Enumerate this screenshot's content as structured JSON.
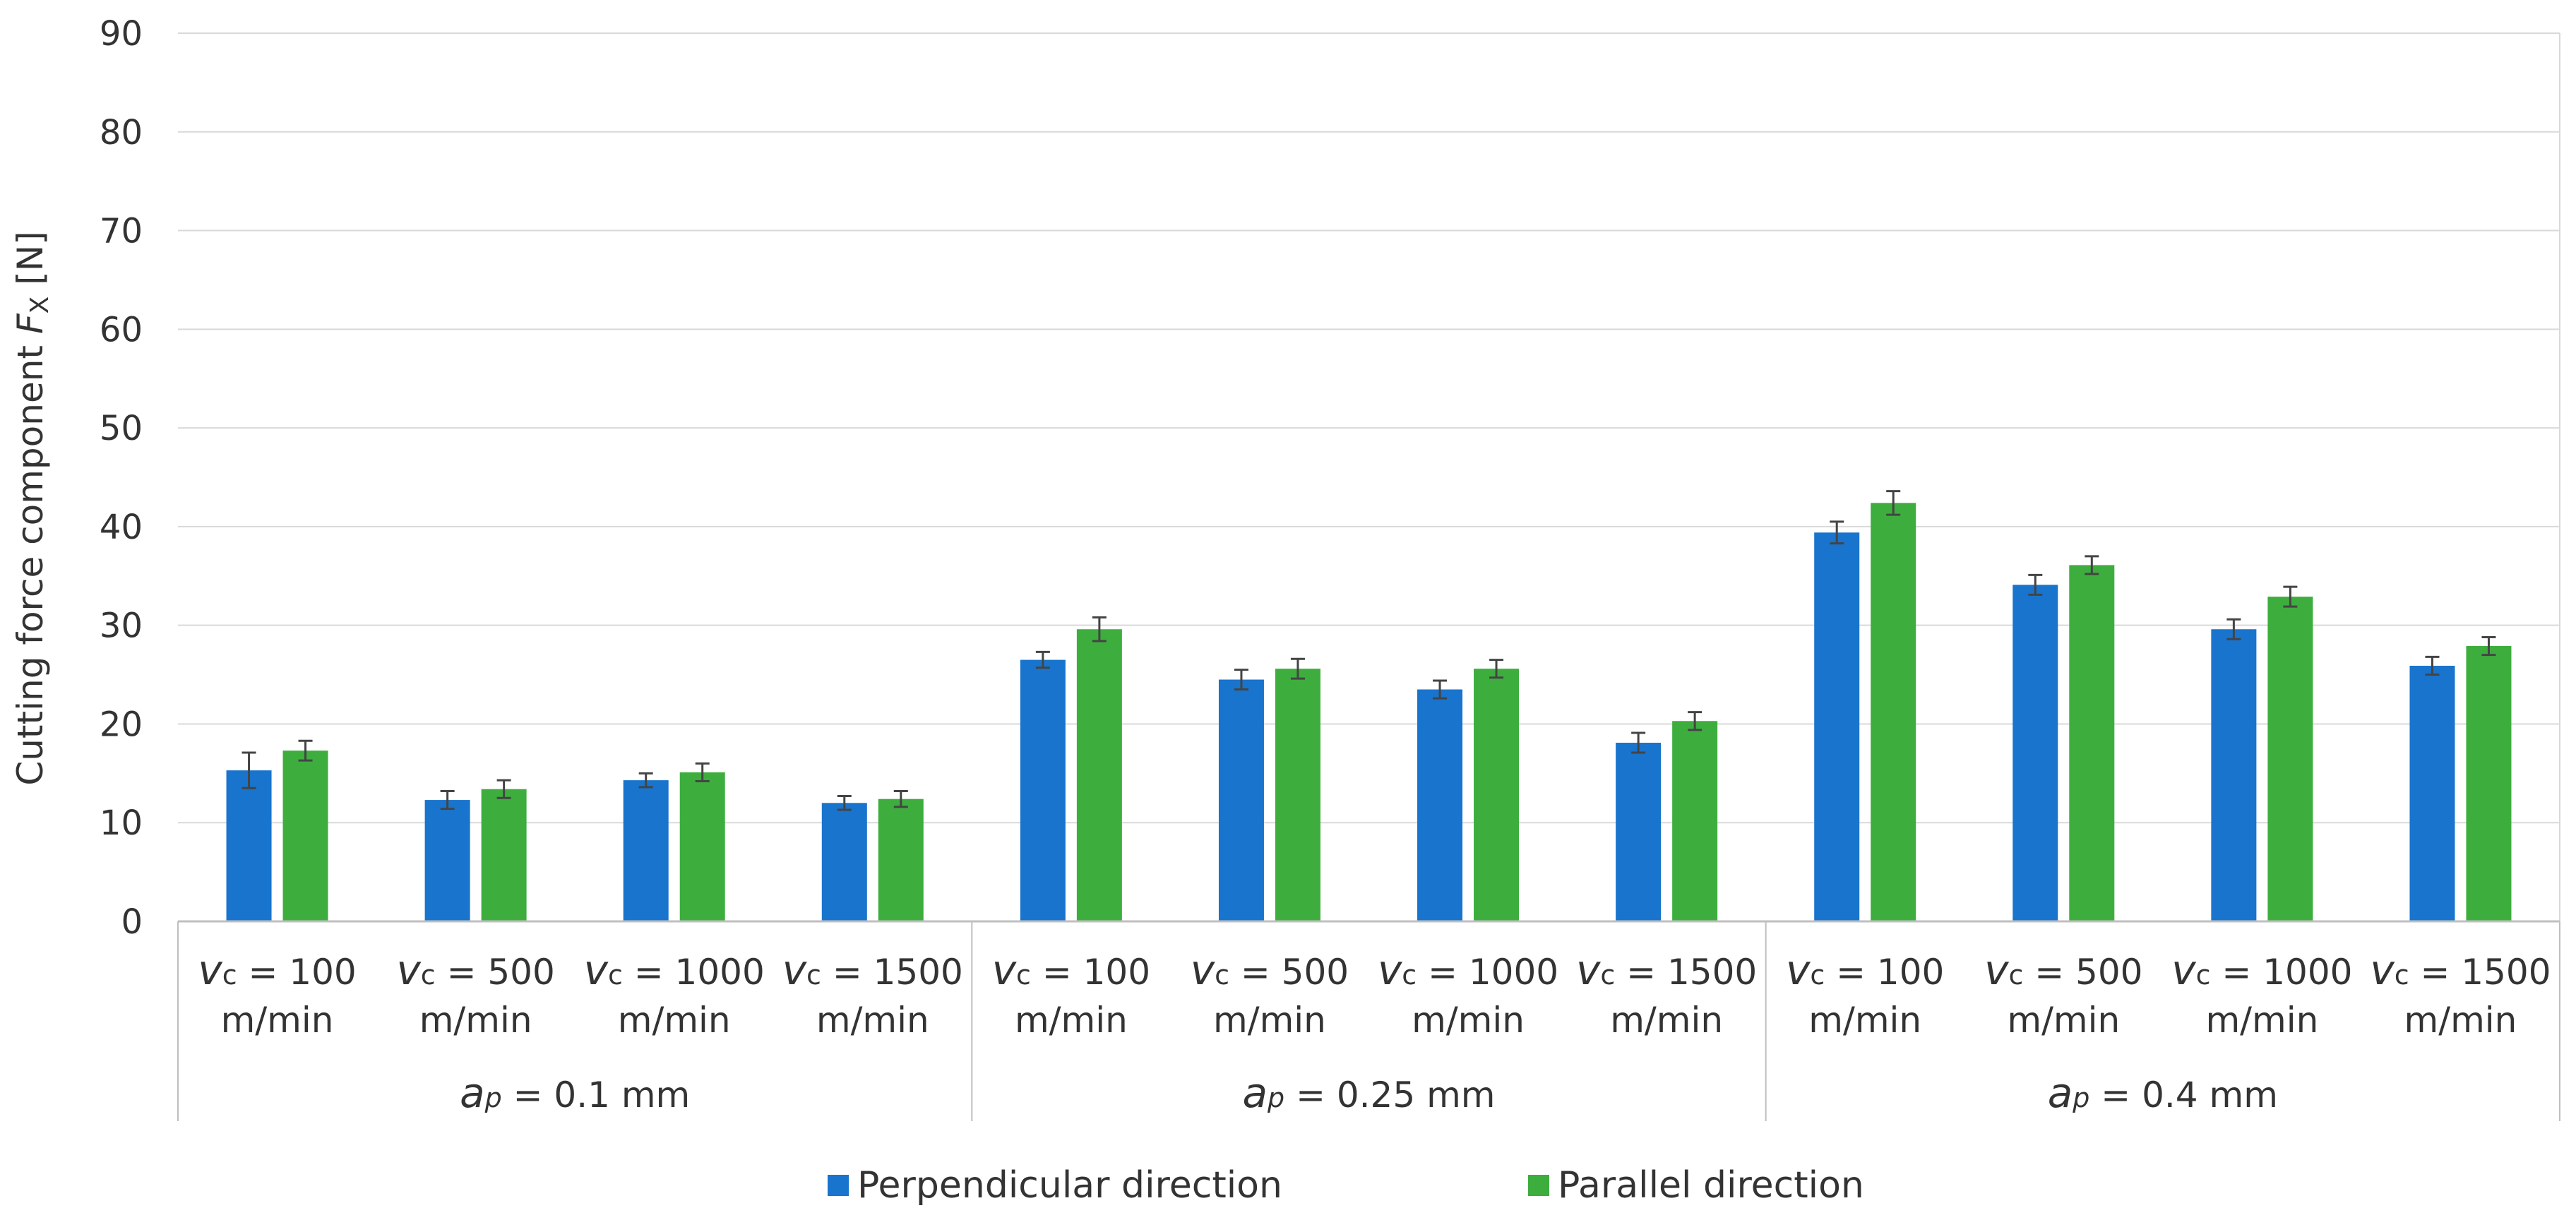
{
  "chart_data": {
    "type": "bar",
    "ylabel": "Cutting force component",
    "ylabel_symbol": "F",
    "ylabel_sub": "X",
    "ylabel_unit": "[N]",
    "ylim": [
      0,
      90
    ],
    "yticks": [
      0,
      10,
      20,
      30,
      40,
      50,
      60,
      70,
      80,
      90
    ],
    "grid": true,
    "legend_position": "bottom-center",
    "categories": [
      {
        "symbol": "v",
        "sub": "c",
        "eq": " = 100",
        "unit": "m/min"
      },
      {
        "symbol": "v",
        "sub": "c",
        "eq": " = 500",
        "unit": "m/min"
      },
      {
        "symbol": "v",
        "sub": "c",
        "eq": " = 1000",
        "unit": "m/min"
      },
      {
        "symbol": "v",
        "sub": "c",
        "eq": " = 1500",
        "unit": "m/min"
      },
      {
        "symbol": "v",
        "sub": "c",
        "eq": " = 100",
        "unit": "m/min"
      },
      {
        "symbol": "v",
        "sub": "c",
        "eq": " = 500",
        "unit": "m/min"
      },
      {
        "symbol": "v",
        "sub": "c",
        "eq": " = 1000",
        "unit": "m/min"
      },
      {
        "symbol": "v",
        "sub": "c",
        "eq": " = 1500",
        "unit": "m/min"
      },
      {
        "symbol": "v",
        "sub": "c",
        "eq": " = 100",
        "unit": "m/min"
      },
      {
        "symbol": "v",
        "sub": "c",
        "eq": " = 500",
        "unit": "m/min"
      },
      {
        "symbol": "v",
        "sub": "c",
        "eq": " = 1000",
        "unit": "m/min"
      },
      {
        "symbol": "v",
        "sub": "c",
        "eq": " = 1500",
        "unit": "m/min"
      }
    ],
    "groups": [
      {
        "symbol": "a",
        "sub": "p",
        "eq": " = 0.1 mm",
        "span": 4
      },
      {
        "symbol": "a",
        "sub": "p",
        "eq": " = 0.25 mm",
        "span": 4
      },
      {
        "symbol": "a",
        "sub": "p",
        "eq": " = 0.4 mm",
        "span": 4
      }
    ],
    "series": [
      {
        "name": "Perpendicular direction",
        "color": "#1874CD",
        "values": [
          15.3,
          12.3,
          14.3,
          12.0,
          26.5,
          24.5,
          23.5,
          18.1,
          39.4,
          34.1,
          29.6,
          25.9
        ],
        "errors": [
          1.8,
          0.9,
          0.7,
          0.7,
          0.8,
          1.0,
          0.9,
          1.0,
          1.1,
          1.0,
          1.0,
          0.9
        ]
      },
      {
        "name": "Parallel direction",
        "color": "#3DAE3D",
        "values": [
          17.3,
          13.4,
          15.1,
          12.4,
          29.6,
          25.6,
          25.6,
          20.3,
          42.4,
          36.1,
          32.9,
          27.9
        ],
        "errors": [
          1.0,
          0.9,
          0.9,
          0.8,
          1.2,
          1.0,
          0.9,
          0.9,
          1.2,
          0.9,
          1.0,
          0.9
        ]
      }
    ]
  }
}
